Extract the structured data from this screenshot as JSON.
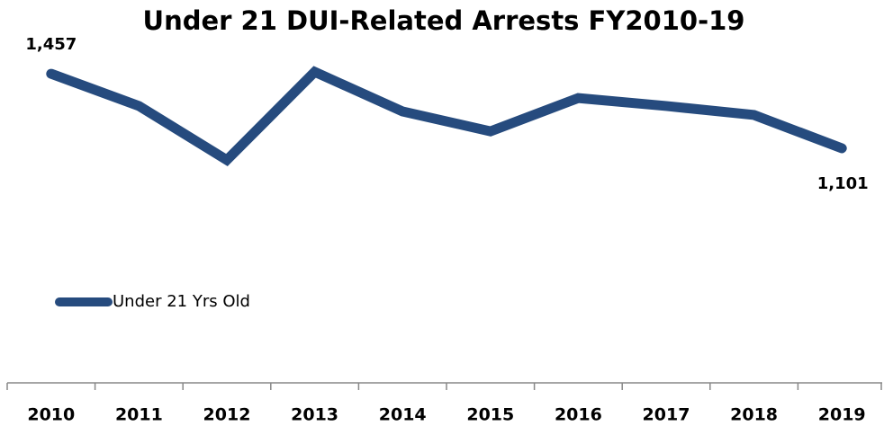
{
  "chart_data": {
    "type": "line",
    "title": "Under 21 DUI-Related Arrests FY2010-19",
    "categories": [
      "2010",
      "2011",
      "2012",
      "2013",
      "2014",
      "2015",
      "2016",
      "2017",
      "2018",
      "2019"
    ],
    "series": [
      {
        "name": "Under 21 Yrs Old",
        "color": "#264b7e",
        "values": [
          1457,
          1303,
          1045,
          1466,
          1277,
          1182,
          1341,
          1303,
          1260,
          1101
        ],
        "value_labels": [
          "1,457",
          null,
          null,
          null,
          null,
          null,
          null,
          null,
          null,
          "1,101"
        ]
      }
    ],
    "legend": "left"
  }
}
